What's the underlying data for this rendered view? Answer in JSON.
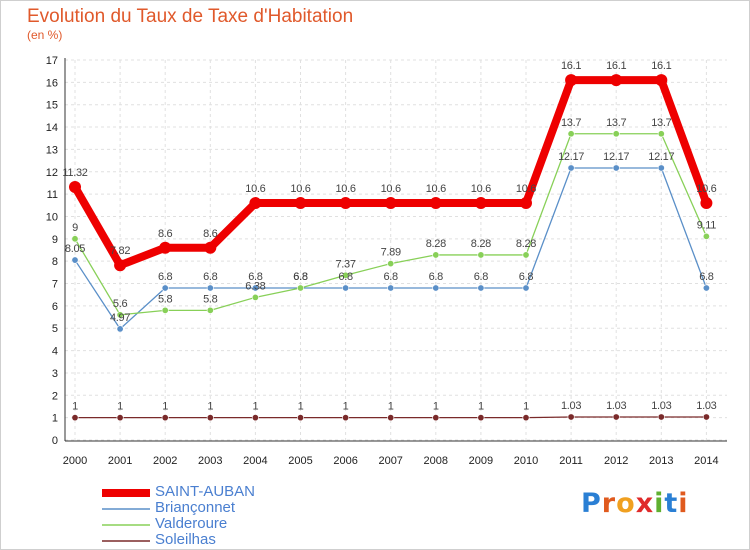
{
  "chart_data": {
    "type": "line",
    "title": "Evolution du Taux de Taxe d'Habitation",
    "subtitle": "(en %)",
    "x": [
      "2000",
      "2001",
      "2002",
      "2003",
      "2004",
      "2005",
      "2006",
      "2007",
      "2008",
      "2009",
      "2010",
      "2011",
      "2012",
      "2013",
      "2014"
    ],
    "ylim": [
      0,
      17
    ],
    "yticks": [
      0,
      1,
      2,
      3,
      4,
      5,
      6,
      7,
      8,
      9,
      10,
      11,
      12,
      13,
      14,
      15,
      16,
      17
    ],
    "grid": true,
    "legend_position": "bottom-left",
    "series": [
      {
        "name": "SAINT-AUBAN",
        "color": "#ee0000",
        "values": [
          11.32,
          7.82,
          8.6,
          8.6,
          10.6,
          10.6,
          10.6,
          10.6,
          10.6,
          10.6,
          10.6,
          16.1,
          16.1,
          16.1,
          10.6
        ],
        "labels": [
          "11.32",
          "7.82",
          "8.6",
          "8.6",
          "10.6",
          "10.6",
          "10.6",
          "10.6",
          "10.6",
          "10.6",
          "10.6",
          "16.1",
          "16.1",
          "16.1",
          "10.6"
        ]
      },
      {
        "name": "Briançonnet",
        "color": "#5a8fc8",
        "values": [
          8.05,
          4.97,
          6.8,
          6.8,
          6.8,
          6.8,
          6.8,
          6.8,
          6.8,
          6.8,
          6.8,
          12.17,
          12.17,
          12.17,
          6.8
        ],
        "labels": [
          "8.05",
          "4.97",
          "6.8",
          "6.8",
          "6.8",
          "6.8",
          "6.8",
          "6.8",
          "6.8",
          "6.8",
          "6.8",
          "12.17",
          "12.17",
          "12.17",
          "6.8"
        ]
      },
      {
        "name": "Valderoure",
        "color": "#88d058",
        "values": [
          9,
          5.6,
          5.8,
          5.8,
          6.38,
          6.8,
          7.37,
          7.89,
          8.28,
          8.28,
          8.28,
          13.7,
          13.7,
          13.7,
          9.11
        ],
        "labels": [
          "9",
          "5.6",
          "5.8",
          "5.8",
          "6.38",
          "6.8",
          "7.37",
          "7.89",
          "8.28",
          "8.28",
          "8.28",
          "13.7",
          "13.7",
          "13.7",
          "9.11"
        ]
      },
      {
        "name": "Soleilhas",
        "color": "#7a2a2a",
        "values": [
          1,
          1,
          1,
          1,
          1,
          1,
          1,
          1,
          1,
          1,
          1,
          1.03,
          1.03,
          1.03,
          1.03
        ],
        "labels": [
          "1",
          "1",
          "1",
          "1",
          "1",
          "1",
          "1",
          "1",
          "1",
          "1",
          "1",
          "1.03",
          "1.03",
          "1.03",
          "1.03"
        ]
      }
    ]
  },
  "logo": {
    "letters": [
      "P",
      "r",
      "o",
      "x",
      "i",
      "t",
      "i"
    ],
    "colors": [
      "#2a7fd4",
      "#e05a1e",
      "#f0a020",
      "#e02a2a",
      "#60b030",
      "#2a7fd4",
      "#e05a1e"
    ]
  }
}
